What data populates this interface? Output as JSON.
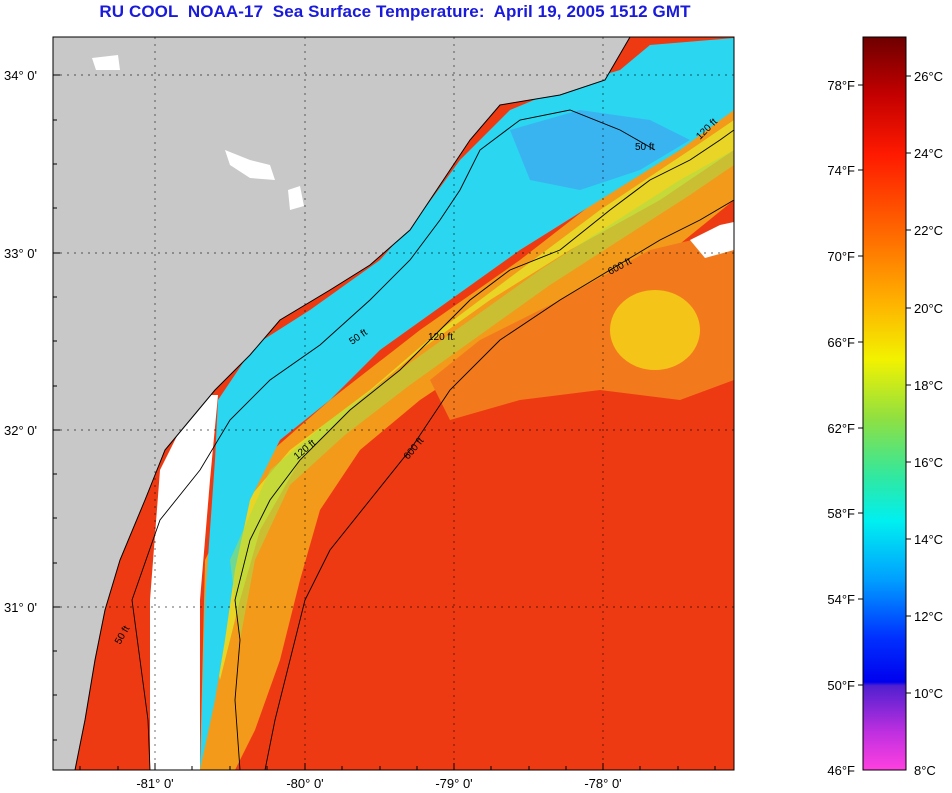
{
  "title": "RU COOL  NOAA-17  Sea Surface Temperature:  April 19, 2005 1512 GMT",
  "map": {
    "lat_labels": [
      "34° 0'",
      "33° 0'",
      "32° 0'",
      "31° 0'"
    ],
    "lon_labels": [
      "-81° 0'",
      "-80° 0'",
      "-79° 0'",
      "-78° 0'"
    ],
    "contour_labels": [
      "50 ft",
      "120 ft",
      "600 ft"
    ],
    "colors": {
      "land": "#c8c8c8",
      "nodata": "#ffffff",
      "nearshore": "#2bd6f0",
      "shelf": "#f2a018",
      "gulfstream": "#ee3a12"
    }
  },
  "colorbar": {
    "fahrenheit_labels": [
      "78°F",
      "74°F",
      "70°F",
      "66°F",
      "62°F",
      "58°F",
      "54°F",
      "50°F",
      "46°F"
    ],
    "celsius_labels": [
      "26°C",
      "24°C",
      "22°C",
      "20°C",
      "18°C",
      "16°C",
      "14°C",
      "12°C",
      "10°C",
      "8°C"
    ]
  }
}
